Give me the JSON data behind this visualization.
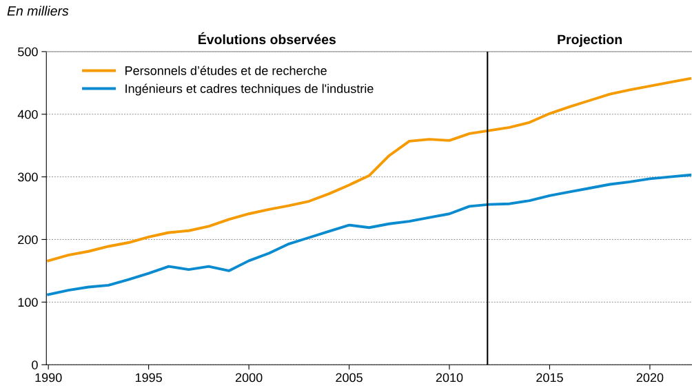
{
  "chart_data": {
    "type": "line",
    "ylabel": "En milliers",
    "x": [
      1990,
      1991,
      1992,
      1993,
      1994,
      1995,
      1996,
      1997,
      1998,
      1999,
      2000,
      2001,
      2002,
      2003,
      2004,
      2005,
      2006,
      2007,
      2008,
      2009,
      2010,
      2011,
      2012,
      2013,
      2014,
      2015,
      2016,
      2017,
      2018,
      2019,
      2020,
      2021,
      2022
    ],
    "series": [
      {
        "name": "Personnels d’études et de recherche",
        "color": "#f59a00",
        "values": [
          166,
          175,
          181,
          189,
          195,
          204,
          211,
          214,
          221,
          232,
          241,
          248,
          254,
          261,
          273,
          287,
          302,
          334,
          357,
          360,
          358,
          369,
          374,
          379,
          387,
          401,
          412,
          422,
          432,
          439,
          445,
          451,
          457
        ]
      },
      {
        "name": "Ingénieurs et cadres techniques de l'industrie",
        "color": "#0a8bd0",
        "values": [
          112,
          119,
          124,
          127,
          136,
          146,
          157,
          152,
          157,
          150,
          166,
          178,
          193,
          203,
          213,
          223,
          219,
          225,
          229,
          235,
          241,
          253,
          256,
          257,
          262,
          270,
          276,
          282,
          288,
          292,
          297,
          300,
          303
        ]
      }
    ],
    "xlim": [
      1989.9,
      2022.1
    ],
    "xticks": [
      1990,
      1995,
      2000,
      2005,
      2010,
      2015,
      2020
    ],
    "ylim": [
      0,
      500
    ],
    "yticks": [
      0,
      100,
      200,
      300,
      400,
      500
    ],
    "grid": "y",
    "legend": "top left",
    "marker": "none",
    "line_style": "solid",
    "ref_lines": [
      {
        "axis": "x",
        "value": 2011.9,
        "color": "#000000"
      }
    ],
    "annotations": [
      "Évolutions observées",
      "Projection"
    ]
  }
}
